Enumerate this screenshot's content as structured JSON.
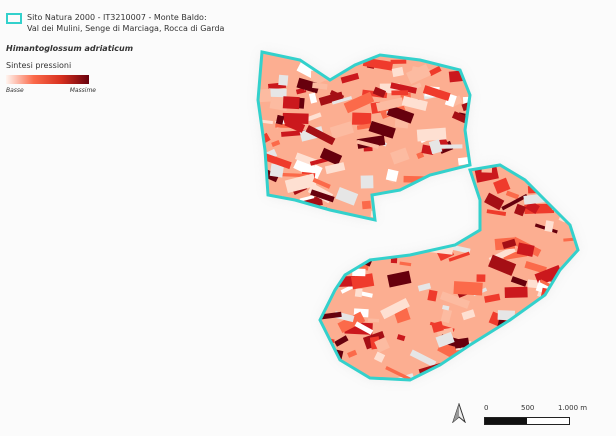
{
  "legend": {
    "site_line1": "Sito Natura 2000 - IT3210007 - Monte Baldo:",
    "site_line2": "Val dei Mulini, Senge di Marciaga, Rocca di Garda",
    "site_color": "#33d1cc",
    "species": "Himantoglossum adriaticum",
    "ramp_title": "Sintesi pressioni",
    "ramp_low": "Basse",
    "ramp_high": "Massime",
    "ramp_colors": [
      "#fff5f0",
      "#fb6a4a",
      "#d7301f",
      "#67000d"
    ]
  },
  "scalebar": {
    "labels": [
      "0",
      "500",
      "1.000 m"
    ]
  },
  "north_arrow": "north-arrow-icon"
}
